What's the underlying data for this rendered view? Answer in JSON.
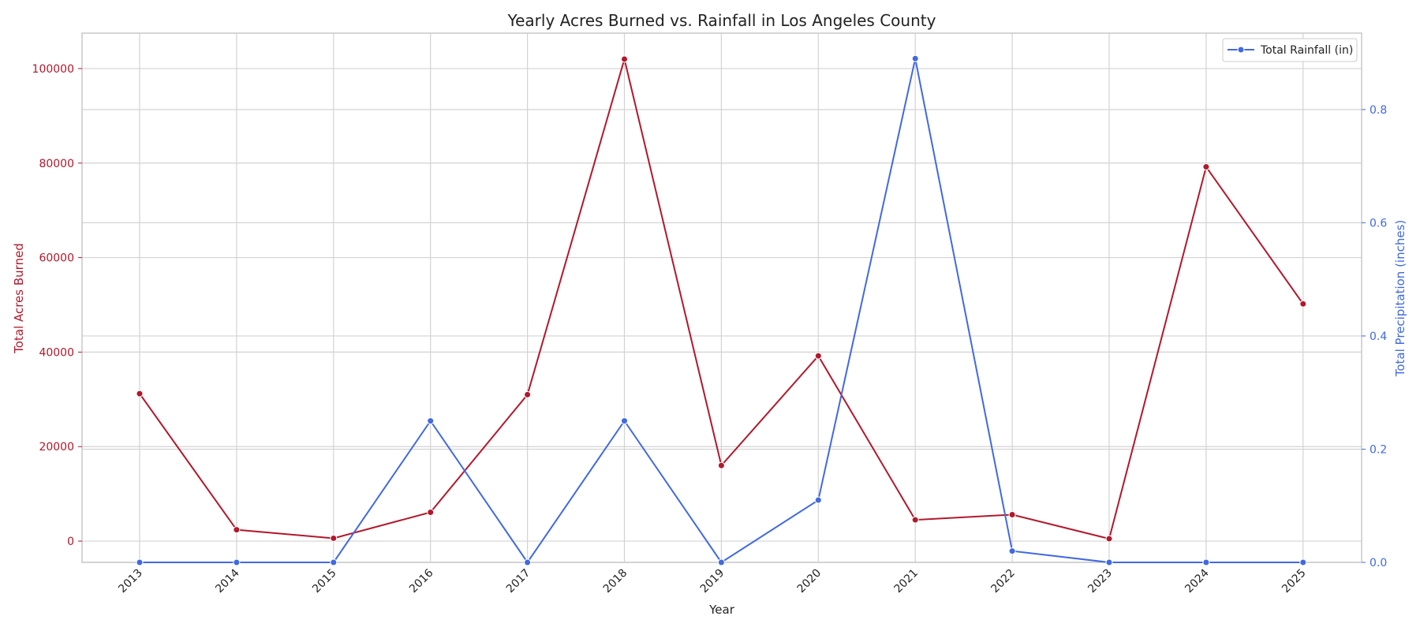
{
  "chart_data": {
    "type": "line",
    "title": "Yearly Acres Burned vs. Rainfall in Los Angeles County",
    "xlabel": "Year",
    "ylabel_left": "Total Acres Burned",
    "ylabel_right": "Total Precipitation (inches)",
    "categories": [
      "2013",
      "2014",
      "2015",
      "2016",
      "2017",
      "2018",
      "2019",
      "2020",
      "2021",
      "2022",
      "2023",
      "2024",
      "2025"
    ],
    "left_ticks": [
      "0",
      "20000",
      "40000",
      "60000",
      "80000",
      "100000"
    ],
    "right_ticks": [
      "0.0",
      "0.2",
      "0.4",
      "0.6",
      "0.8"
    ],
    "ylim_left": [
      -4500,
      107500
    ],
    "ylim_right": [
      0,
      0.935
    ],
    "grid": true,
    "legend_position": "top-right",
    "colors": {
      "acres": "#b2182b",
      "rain": "#4169e1",
      "grid": "#d3d3d3",
      "frame": "#c8c8c8"
    },
    "series": [
      {
        "axis": "left",
        "values": [
          31200,
          2400,
          600,
          6100,
          31000,
          102000,
          16000,
          39200,
          4500,
          5600,
          500,
          79200,
          50200
        ]
      },
      {
        "name": "Total Rainfall (in)",
        "axis": "right",
        "values": [
          0.0,
          0.0,
          0.0,
          0.25,
          0.0,
          0.25,
          0.0,
          0.11,
          0.89,
          0.02,
          0.0,
          0.0,
          0.0
        ]
      }
    ]
  }
}
